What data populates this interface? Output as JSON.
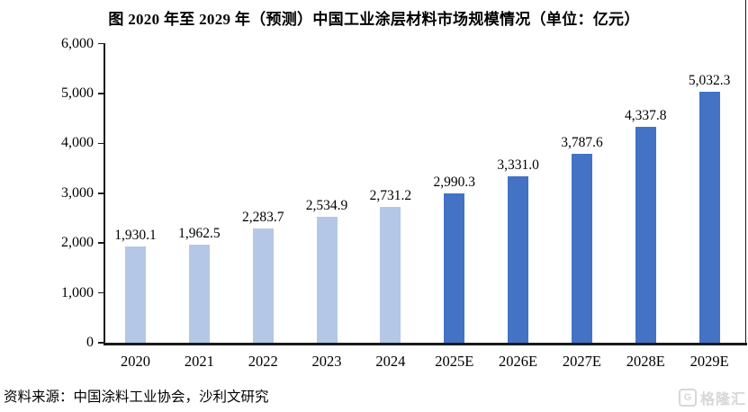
{
  "title": "图  2020 年至 2029 年（预测）中国工业涂层材料市场规模情况（单位：亿元）",
  "chart_data": {
    "type": "bar",
    "title": "图 2020 年至 2029 年（预测）中国工业涂层材料市场规模情况（单位：亿元）",
    "unit": "亿元",
    "categories": [
      "2020",
      "2021",
      "2022",
      "2023",
      "2024",
      "2025E",
      "2026E",
      "2027E",
      "2028E",
      "2029E"
    ],
    "values": [
      1930.1,
      1962.5,
      2283.7,
      2534.9,
      2731.2,
      2990.3,
      3331.0,
      3787.6,
      4337.8,
      5032.3
    ],
    "value_labels": [
      "1,930.1",
      "1,962.5",
      "2,283.7",
      "2,534.9",
      "2,731.2",
      "2,990.3",
      "3,331.0",
      "3,787.6",
      "4,337.8",
      "5,032.3"
    ],
    "bar_colors": [
      "#B4C7E7",
      "#B4C7E7",
      "#B4C7E7",
      "#B4C7E7",
      "#B4C7E7",
      "#4472C4",
      "#4472C4",
      "#4472C4",
      "#4472C4",
      "#4472C4"
    ],
    "color_legend": {
      "historical_color": "#B4C7E7",
      "forecast_color": "#4472C4",
      "forecast_from_index": 5
    },
    "ylim": [
      0,
      6000
    ],
    "yticks": [
      0,
      1000,
      2000,
      3000,
      4000,
      5000,
      6000
    ],
    "ytick_labels": [
      "0",
      "1,000",
      "2,000",
      "3,000",
      "4,000",
      "5,000",
      "6,000"
    ],
    "grid": false,
    "legend": "none",
    "xlabel": "",
    "ylabel": ""
  },
  "source": "资料来源：中国涂料工业协会，沙利文研究",
  "watermark": {
    "icon": "G",
    "text": "格隆汇",
    "color": "#d7d7d7"
  }
}
